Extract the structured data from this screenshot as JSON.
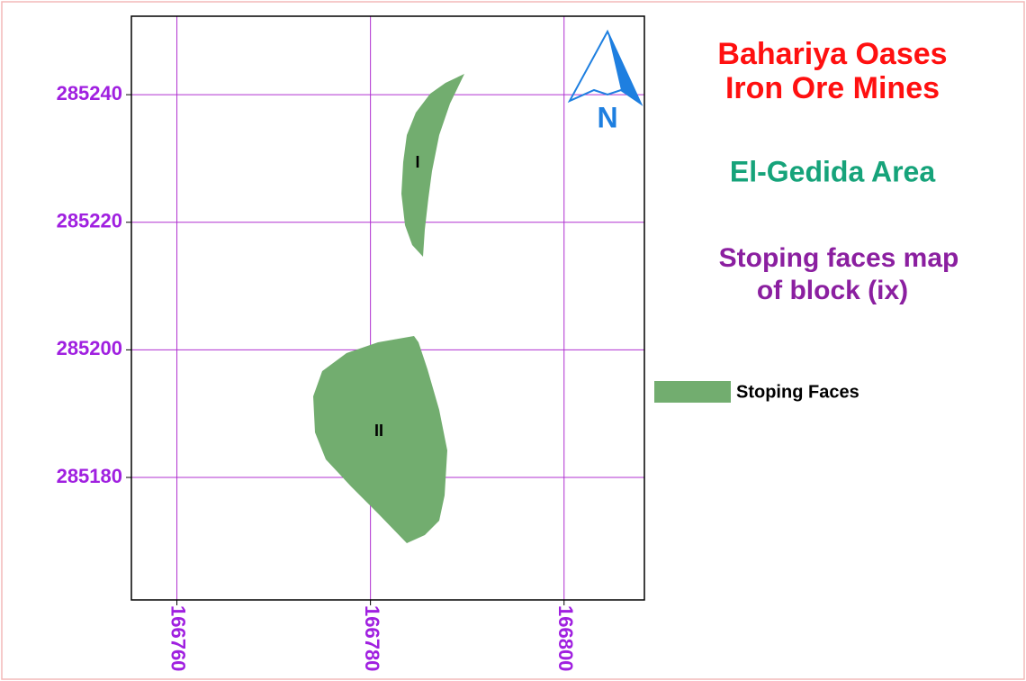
{
  "map": {
    "title": [
      "Bahariya Oases",
      "Iron Ore Mines"
    ],
    "area": "El-Gedida Area",
    "subtitle": [
      "Stoping faces map",
      "of block (ix)"
    ],
    "north": "N",
    "legend": "Stoping Faces",
    "features": [
      "I",
      "II"
    ],
    "xlim": [
      166755.3,
      166808.3
    ],
    "ylim": [
      285160.8,
      285252.3
    ],
    "xticks": [
      166760,
      166780,
      166800
    ],
    "yticks": [
      285180,
      285200,
      285220,
      285240
    ],
    "grid": true,
    "grid_color": "#b030d0",
    "fill_color": "#72ad6f"
  }
}
